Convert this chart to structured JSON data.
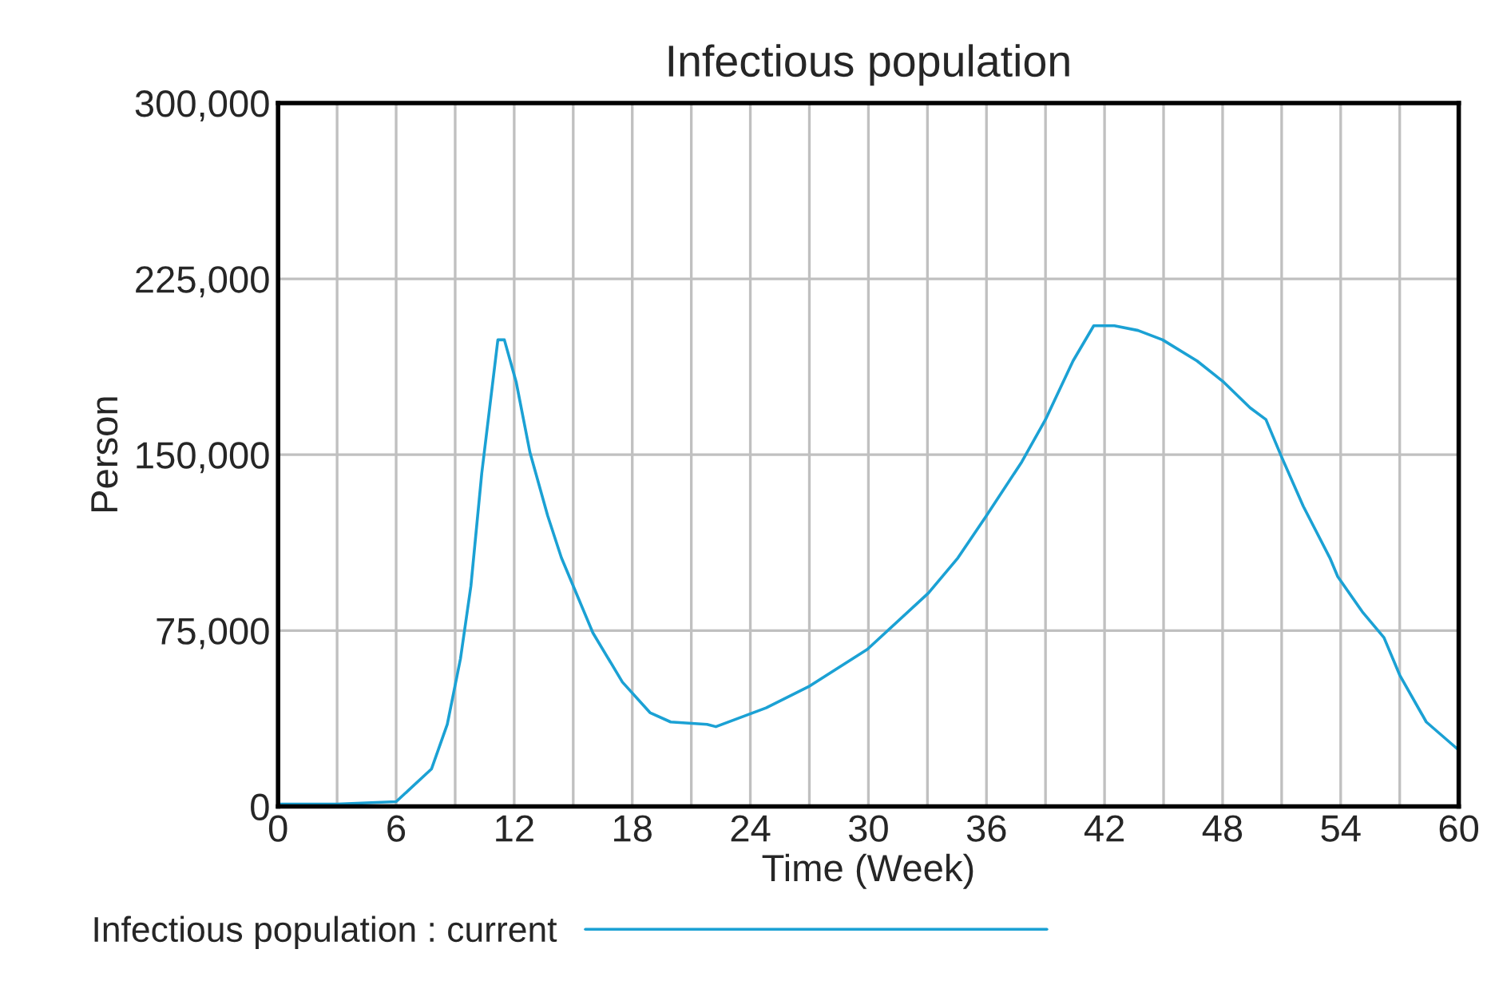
{
  "chart_data": {
    "type": "line",
    "title": "Infectious population",
    "xlabel": "Time (Week)",
    "ylabel": "Person",
    "x": [
      0,
      3,
      6,
      7.8,
      8.6,
      9.27,
      9.8,
      10.35,
      11.17,
      11.5,
      12.1,
      12.8,
      13.7,
      14.4,
      16.0,
      17.5,
      18.9,
      19.95,
      21.8,
      22.25,
      24.8,
      26.95,
      29.95,
      33.05,
      34.55,
      36.0,
      37.8,
      39.0,
      40.4,
      41.45,
      42.5,
      43.7,
      44.95,
      46.7,
      48.05,
      49.4,
      50.2,
      51.0,
      52.1,
      53.45,
      53.85,
      55.1,
      56.2,
      57.0,
      58.35,
      60
    ],
    "series": [
      {
        "name": "Infectious population : current",
        "color": "#1ba1d4",
        "values": [
          1000,
          1000,
          2000,
          16000,
          35000,
          63000,
          94000,
          142000,
          199000,
          199000,
          181000,
          151000,
          124000,
          106000,
          74000,
          53000,
          40000,
          36000,
          35000,
          34000,
          42000,
          51000,
          67000,
          91000,
          106000,
          124000,
          147000,
          165000,
          190000,
          205000,
          205000,
          203000,
          199000,
          190000,
          181000,
          170000,
          165000,
          149000,
          128000,
          106000,
          98000,
          83000,
          72000,
          56000,
          36000,
          24000
        ]
      }
    ],
    "xlim": [
      0,
      60
    ],
    "ylim": [
      0,
      300000
    ],
    "xticks": [
      0,
      {
        "value": 3,
        "label": null
      },
      6,
      {
        "value": 9,
        "label": null
      },
      12,
      {
        "value": 15,
        "label": null
      },
      18,
      {
        "value": 21,
        "label": null
      },
      24,
      {
        "value": 27,
        "label": null
      },
      30,
      {
        "value": 33,
        "label": null
      },
      36,
      {
        "value": 39,
        "label": null
      },
      42,
      {
        "value": 45,
        "label": null
      },
      48,
      {
        "value": 51,
        "label": null
      },
      54,
      {
        "value": 57,
        "label": null
      },
      60
    ],
    "yticks": [
      0,
      {
        "value": 75000,
        "label": "75,000"
      },
      {
        "value": 150000,
        "label": "150,000"
      },
      {
        "value": 225000,
        "label": "225,000"
      },
      {
        "value": 300000,
        "label": "300,000"
      }
    ],
    "grid": true,
    "legend": "bottom"
  }
}
